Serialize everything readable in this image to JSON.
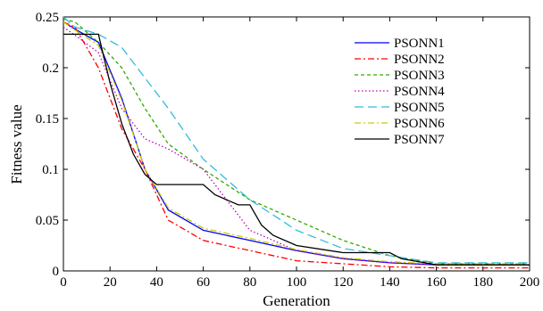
{
  "chart_data": {
    "type": "line",
    "xlabel": "Generation",
    "ylabel": "Fitness value",
    "xlim": [
      0,
      200
    ],
    "ylim": [
      0,
      0.25
    ],
    "x_ticks": [
      "0",
      "20",
      "40",
      "60",
      "80",
      "100",
      "120",
      "140",
      "160",
      "180",
      "200"
    ],
    "y_ticks": [
      "0",
      "0.05",
      "0.1",
      "0.15",
      "0.2",
      "0.25"
    ],
    "legend_position": "top-right",
    "grid": false,
    "series": [
      {
        "name": "PSONN1",
        "color": "#0000ff",
        "dash": "solid",
        "x": [
          0,
          5,
          15,
          25,
          35,
          45,
          60,
          80,
          100,
          120,
          140,
          160,
          200
        ],
        "y": [
          0.245,
          0.238,
          0.225,
          0.17,
          0.1,
          0.06,
          0.04,
          0.03,
          0.02,
          0.012,
          0.008,
          0.006,
          0.006
        ]
      },
      {
        "name": "PSONN2",
        "color": "#ff0000",
        "dash": "dashdot",
        "x": [
          0,
          5,
          15,
          25,
          35,
          45,
          60,
          80,
          100,
          120,
          140,
          160,
          200
        ],
        "y": [
          0.245,
          0.24,
          0.2,
          0.14,
          0.1,
          0.05,
          0.03,
          0.02,
          0.01,
          0.007,
          0.004,
          0.003,
          0.003
        ]
      },
      {
        "name": "PSONN3",
        "color": "#33aa00",
        "dash": "dashed",
        "x": [
          0,
          5,
          15,
          25,
          35,
          45,
          60,
          80,
          100,
          120,
          140,
          160,
          200
        ],
        "y": [
          0.248,
          0.245,
          0.225,
          0.2,
          0.16,
          0.125,
          0.1,
          0.07,
          0.05,
          0.03,
          0.015,
          0.007,
          0.007
        ]
      },
      {
        "name": "PSONN4",
        "color": "#bb00bb",
        "dash": "dotted",
        "x": [
          0,
          5,
          15,
          25,
          35,
          45,
          60,
          80,
          100,
          120,
          140,
          160,
          200
        ],
        "y": [
          0.24,
          0.232,
          0.215,
          0.16,
          0.13,
          0.12,
          0.1,
          0.04,
          0.02,
          0.012,
          0.008,
          0.006,
          0.006
        ]
      },
      {
        "name": "PSONN5",
        "color": "#33bbdd",
        "dash": "longdash",
        "x": [
          0,
          5,
          15,
          25,
          35,
          45,
          60,
          80,
          100,
          120,
          140,
          160,
          200
        ],
        "y": [
          0.25,
          0.24,
          0.233,
          0.22,
          0.19,
          0.16,
          0.11,
          0.07,
          0.04,
          0.022,
          0.015,
          0.008,
          0.008
        ]
      },
      {
        "name": "PSONN6",
        "color": "#cccc00",
        "dash": "dashdot",
        "x": [
          0,
          5,
          15,
          25,
          35,
          45,
          60,
          80,
          100,
          120,
          140,
          160,
          200
        ],
        "y": [
          0.245,
          0.237,
          0.222,
          0.168,
          0.1,
          0.062,
          0.042,
          0.032,
          0.021,
          0.013,
          0.009,
          0.007,
          0.007
        ]
      },
      {
        "name": "PSONN7",
        "color": "#000000",
        "dash": "solid",
        "x": [
          0,
          3,
          15,
          20,
          25,
          30,
          35,
          40,
          50,
          60,
          65,
          75,
          80,
          85,
          90,
          100,
          120,
          140,
          145,
          160,
          200
        ],
        "y": [
          0.233,
          0.233,
          0.233,
          0.185,
          0.145,
          0.115,
          0.095,
          0.085,
          0.085,
          0.085,
          0.075,
          0.065,
          0.065,
          0.045,
          0.035,
          0.025,
          0.018,
          0.018,
          0.012,
          0.006,
          0.006
        ]
      }
    ]
  }
}
